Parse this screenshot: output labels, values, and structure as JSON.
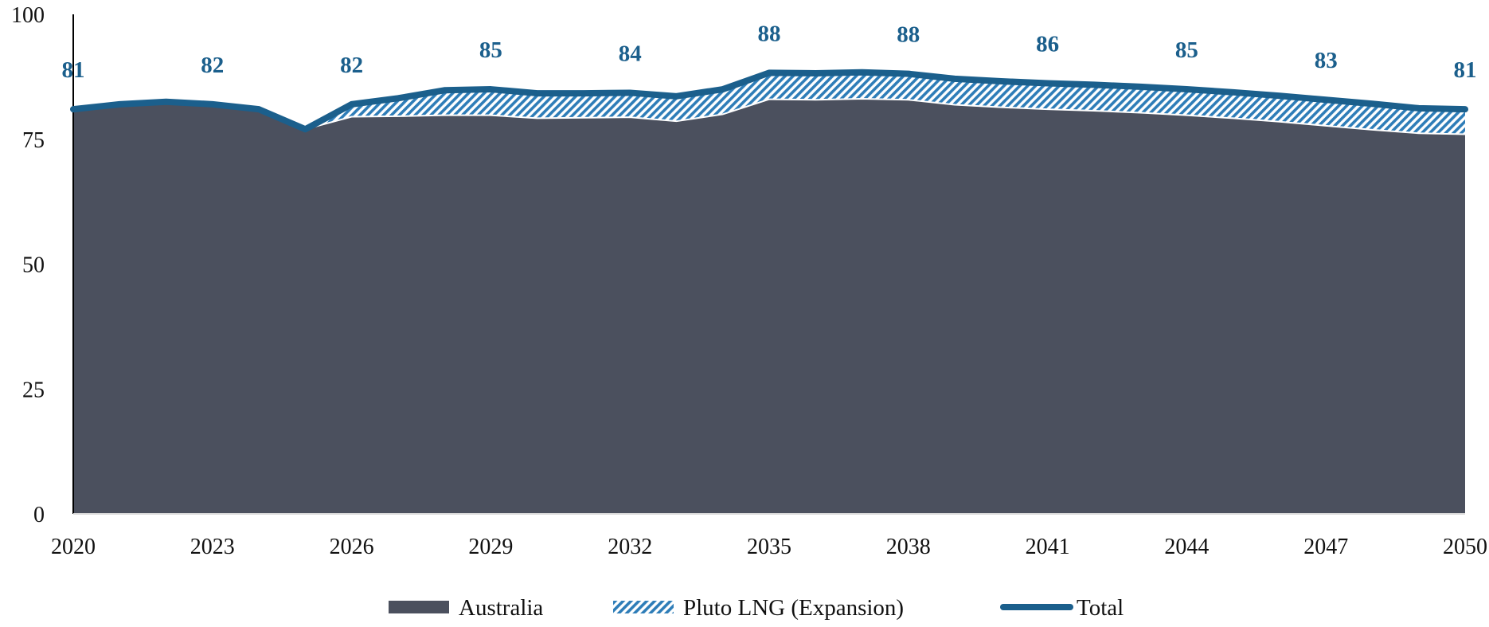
{
  "chart_data": {
    "type": "area",
    "title": "",
    "xlabel": "",
    "ylabel": "",
    "x": [
      2020,
      2021,
      2022,
      2023,
      2024,
      2025,
      2026,
      2027,
      2028,
      2029,
      2030,
      2031,
      2032,
      2033,
      2034,
      2035,
      2036,
      2037,
      2038,
      2039,
      2040,
      2041,
      2042,
      2043,
      2044,
      2045,
      2046,
      2047,
      2048,
      2049,
      2050
    ],
    "xlim": [
      2020,
      2050
    ],
    "ylim": [
      0,
      100
    ],
    "x_ticks": [
      "2020",
      "2023",
      "2026",
      "2029",
      "2032",
      "2035",
      "2038",
      "2041",
      "2044",
      "2047",
      "2050"
    ],
    "y_ticks": [
      "0",
      "25",
      "50",
      "75",
      "100"
    ],
    "series": [
      {
        "name": "Australia",
        "style": "stacked-area-solid",
        "values": [
          81,
          82,
          82.5,
          82,
          81,
          77,
          79.5,
          79.6,
          79.8,
          79.8,
          79.2,
          79.3,
          79.4,
          78.6,
          80,
          83,
          82.9,
          83.1,
          82.9,
          81.9,
          81.4,
          81,
          80.7,
          80.3,
          79.8,
          79.2,
          78.5,
          77.7,
          76.9,
          76.2,
          76
        ]
      },
      {
        "name": "Pluto LNG (Expansion)",
        "style": "stacked-area-hatched",
        "values": [
          0,
          0,
          0,
          0,
          0,
          0,
          2.5,
          3.6,
          5,
          5.2,
          5,
          4.9,
          4.9,
          5,
          5,
          5.3,
          5.3,
          5.3,
          5.2,
          5.2,
          5.2,
          5.2,
          5.2,
          5.2,
          5.2,
          5.2,
          5.2,
          5.2,
          5.2,
          5,
          5
        ]
      }
    ],
    "total": {
      "name": "Total",
      "style": "line",
      "values": [
        81,
        82,
        82.5,
        82,
        81,
        77,
        82,
        83.2,
        84.8,
        85,
        84.2,
        84.2,
        84.3,
        83.6,
        85,
        88.3,
        88.2,
        88.4,
        88.1,
        87.1,
        86.6,
        86.2,
        85.9,
        85.5,
        85,
        84.4,
        83.7,
        82.9,
        82.1,
        81.2,
        81
      ]
    },
    "data_labels": [
      {
        "x": 2020,
        "text": "81"
      },
      {
        "x": 2023,
        "text": "82"
      },
      {
        "x": 2026,
        "text": "82"
      },
      {
        "x": 2029,
        "text": "85"
      },
      {
        "x": 2032,
        "text": "84"
      },
      {
        "x": 2035,
        "text": "88"
      },
      {
        "x": 2038,
        "text": "88"
      },
      {
        "x": 2041,
        "text": "86"
      },
      {
        "x": 2044,
        "text": "85"
      },
      {
        "x": 2047,
        "text": "83"
      },
      {
        "x": 2050,
        "text": "81"
      }
    ],
    "legend": {
      "placement": "bottom",
      "items": [
        {
          "label": "Australia",
          "kind": "area-solid"
        },
        {
          "label": "Pluto LNG (Expansion)",
          "kind": "area-hatched"
        },
        {
          "label": "Total",
          "kind": "line"
        }
      ]
    },
    "colors": {
      "australia": "#4b505e",
      "pluto_hatch": "#2e7db8",
      "total_line": "#1b5f8c",
      "label_text": "#1b5f8c",
      "axis": "#000000"
    },
    "grid": false
  }
}
